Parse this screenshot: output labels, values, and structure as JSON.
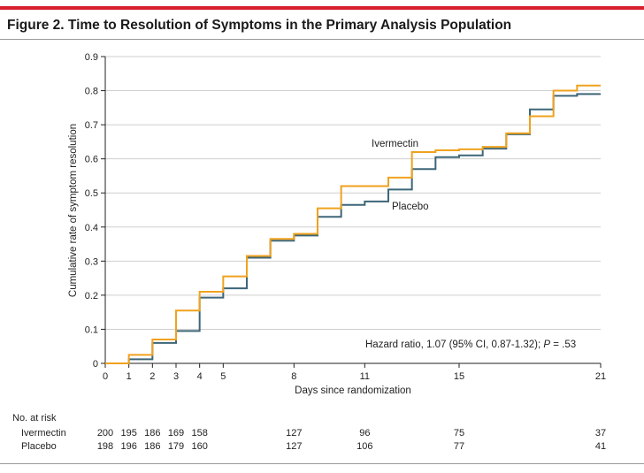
{
  "figure": {
    "title": "Figure 2. Time to Resolution of Symptoms in the Primary Analysis Population"
  },
  "chart_data": {
    "type": "line",
    "step": true,
    "xlabel": "Days since randomization",
    "ylabel": "Cumulative rate of symptom resolution",
    "xlim": [
      0,
      21
    ],
    "ylim": [
      0,
      0.9
    ],
    "xticks": [
      0,
      1,
      2,
      3,
      4,
      5,
      8,
      11,
      15,
      21
    ],
    "yticks": [
      0,
      0.1,
      0.2,
      0.3,
      0.4,
      0.5,
      0.6,
      0.7,
      0.8,
      0.9
    ],
    "ytick_labels": [
      "0",
      "0.1",
      "0.2",
      "0.3",
      "0.4",
      "0.5",
      "0.6",
      "0.7",
      "0.8",
      "0.9"
    ],
    "grid": true,
    "series": [
      {
        "name": "Ivermectin",
        "color": "#f0a21e",
        "steps": [
          [
            0,
            0
          ],
          [
            1,
            0.025
          ],
          [
            2,
            0.07
          ],
          [
            3,
            0.155
          ],
          [
            4,
            0.21
          ],
          [
            5,
            0.255
          ],
          [
            6,
            0.315
          ],
          [
            7,
            0.365
          ],
          [
            8,
            0.38
          ],
          [
            9,
            0.455
          ],
          [
            10,
            0.52
          ],
          [
            12,
            0.545
          ],
          [
            13,
            0.62
          ],
          [
            14,
            0.625
          ],
          [
            15,
            0.628
          ],
          [
            16,
            0.635
          ],
          [
            17,
            0.675
          ],
          [
            18,
            0.725
          ],
          [
            19,
            0.8
          ],
          [
            20,
            0.815
          ],
          [
            21,
            0.815
          ]
        ]
      },
      {
        "name": "Placebo",
        "color": "#3d6678",
        "steps": [
          [
            0,
            0
          ],
          [
            1,
            0.012
          ],
          [
            2,
            0.06
          ],
          [
            3,
            0.095
          ],
          [
            4,
            0.193
          ],
          [
            5,
            0.22
          ],
          [
            6,
            0.31
          ],
          [
            7,
            0.36
          ],
          [
            8,
            0.375
          ],
          [
            9,
            0.43
          ],
          [
            10,
            0.465
          ],
          [
            11,
            0.475
          ],
          [
            12,
            0.51
          ],
          [
            13,
            0.57
          ],
          [
            14,
            0.605
          ],
          [
            15,
            0.61
          ],
          [
            16,
            0.63
          ],
          [
            17,
            0.672
          ],
          [
            18,
            0.745
          ],
          [
            19,
            0.785
          ],
          [
            20,
            0.79
          ],
          [
            21,
            0.79
          ]
        ]
      }
    ],
    "annotation": {
      "prefix": "Hazard ratio, 1.07 (95% CI, 0.87-1.32); ",
      "p_label": "P",
      "p_value": " = .53"
    },
    "at_risk": {
      "heading": "No. at risk",
      "days": [
        0,
        1,
        2,
        3,
        4,
        8,
        11,
        15,
        21
      ],
      "rows": [
        {
          "name": "Ivermectin",
          "values": [
            "200",
            "195",
            "186",
            "169",
            "158",
            "127",
            "96",
            "75",
            "37"
          ]
        },
        {
          "name": "Placebo",
          "values": [
            "198",
            "196",
            "186",
            "179",
            "160",
            "127",
            "106",
            "77",
            "41"
          ]
        }
      ]
    }
  }
}
